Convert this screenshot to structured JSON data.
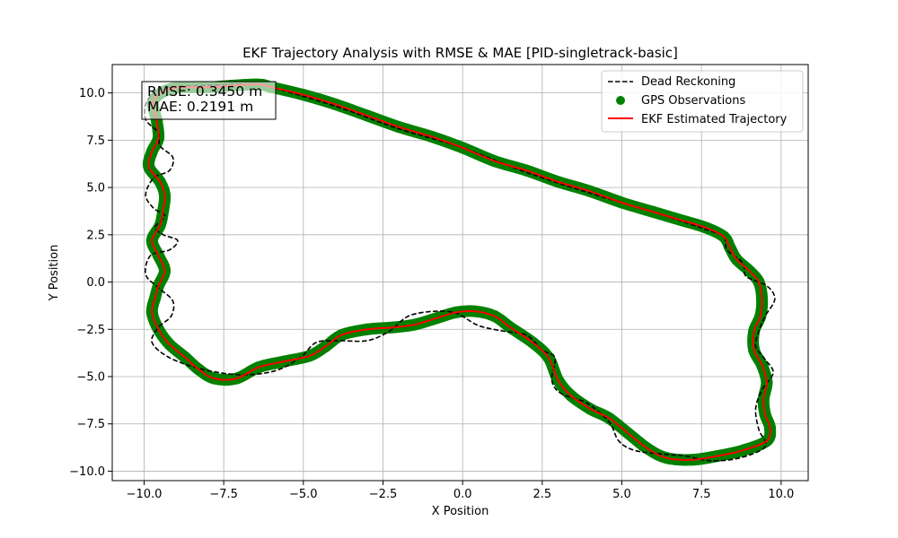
{
  "chart_data": {
    "type": "line",
    "title": "EKF Trajectory Analysis with RMSE & MAE [PID-singletrack-basic]",
    "xlabel": "X Position",
    "ylabel": "Y Position",
    "xlim": [
      -11.0,
      10.85
    ],
    "ylim": [
      -10.5,
      11.5
    ],
    "xticks": [
      -10.0,
      -7.5,
      -5.0,
      -2.5,
      0.0,
      2.5,
      5.0,
      7.5,
      10.0
    ],
    "xtick_labels": [
      "−10.0",
      "−7.5",
      "−5.0",
      "−2.5",
      "0.0",
      "2.5",
      "5.0",
      "7.5",
      "10.0"
    ],
    "yticks": [
      -10.0,
      -7.5,
      -5.0,
      -2.5,
      0.0,
      2.5,
      5.0,
      7.5,
      10.0
    ],
    "ytick_labels": [
      "−10.0",
      "−7.5",
      "−5.0",
      "−2.5",
      "0.0",
      "2.5",
      "5.0",
      "7.5",
      "10.0"
    ],
    "grid": true,
    "legend_position": "top-right",
    "annotation": {
      "lines": [
        "RMSE: 0.3450 m",
        "MAE: 0.2191 m"
      ],
      "position": "top-left"
    },
    "series": [
      {
        "name": "Dead Reckoning",
        "kind": "line",
        "style": "dashed",
        "color": "#000000",
        "points": [
          [
            -6.5,
            10.45
          ],
          [
            -8.0,
            10.4
          ],
          [
            -9.4,
            10.25
          ],
          [
            -9.9,
            9.6
          ],
          [
            -9.95,
            8.6
          ],
          [
            -9.55,
            7.9
          ],
          [
            -9.5,
            7.2
          ],
          [
            -9.1,
            6.6
          ],
          [
            -9.2,
            5.9
          ],
          [
            -9.7,
            5.5
          ],
          [
            -9.95,
            4.6
          ],
          [
            -9.7,
            3.9
          ],
          [
            -9.35,
            3.5
          ],
          [
            -9.65,
            2.9
          ],
          [
            -9.4,
            2.5
          ],
          [
            -8.95,
            2.2
          ],
          [
            -9.2,
            1.7
          ],
          [
            -9.8,
            1.4
          ],
          [
            -9.95,
            0.4
          ],
          [
            -9.55,
            -0.3
          ],
          [
            -9.1,
            -1.0
          ],
          [
            -9.15,
            -1.8
          ],
          [
            -9.55,
            -2.4
          ],
          [
            -9.75,
            -3.2
          ],
          [
            -9.2,
            -4.0
          ],
          [
            -8.2,
            -4.6
          ],
          [
            -7.0,
            -4.9
          ],
          [
            -5.9,
            -4.7
          ],
          [
            -5.1,
            -4.0
          ],
          [
            -4.6,
            -3.2
          ],
          [
            -3.9,
            -3.1
          ],
          [
            -3.0,
            -3.1
          ],
          [
            -2.3,
            -2.6
          ],
          [
            -1.7,
            -1.8
          ],
          [
            -0.9,
            -1.55
          ],
          [
            -0.2,
            -1.65
          ],
          [
            0.5,
            -2.3
          ],
          [
            1.3,
            -2.6
          ],
          [
            2.0,
            -2.8
          ],
          [
            2.5,
            -3.6
          ],
          [
            2.9,
            -4.0
          ],
          [
            2.8,
            -5.2
          ],
          [
            3.1,
            -5.9
          ],
          [
            3.9,
            -6.4
          ],
          [
            4.6,
            -7.4
          ],
          [
            4.9,
            -8.4
          ],
          [
            5.4,
            -8.9
          ],
          [
            6.3,
            -9.1
          ],
          [
            7.0,
            -9.2
          ],
          [
            7.8,
            -9.45
          ],
          [
            8.7,
            -9.3
          ],
          [
            9.5,
            -8.7
          ],
          [
            9.3,
            -7.8
          ],
          [
            9.2,
            -6.7
          ],
          [
            9.4,
            -5.7
          ],
          [
            9.75,
            -4.8
          ],
          [
            9.5,
            -4.1
          ],
          [
            9.2,
            -3.4
          ],
          [
            9.3,
            -2.6
          ],
          [
            9.5,
            -1.8
          ],
          [
            9.8,
            -0.9
          ],
          [
            9.55,
            -0.2
          ],
          [
            8.9,
            0.3
          ],
          [
            8.8,
            1.0
          ],
          [
            8.3,
            1.7
          ],
          [
            8.2,
            2.4
          ],
          [
            7.6,
            2.8
          ],
          [
            6.0,
            3.7
          ],
          [
            4.0,
            4.7
          ],
          [
            2.0,
            5.8
          ],
          [
            0.0,
            7.1
          ],
          [
            -2.0,
            8.1
          ],
          [
            -4.0,
            9.3
          ],
          [
            -6.0,
            10.3
          ]
        ]
      },
      {
        "name": "GPS Observations",
        "kind": "scatter",
        "color": "#008000",
        "points": [
          [
            -6.5,
            10.45
          ],
          [
            -8.0,
            10.3
          ],
          [
            -9.1,
            10.25
          ],
          [
            -9.7,
            9.6
          ],
          [
            -9.6,
            8.5
          ],
          [
            -9.55,
            7.6
          ],
          [
            -9.75,
            6.9
          ],
          [
            -9.85,
            6.1
          ],
          [
            -9.5,
            5.3
          ],
          [
            -9.35,
            4.6
          ],
          [
            -9.4,
            3.8
          ],
          [
            -9.5,
            3.0
          ],
          [
            -9.75,
            2.2
          ],
          [
            -9.55,
            1.4
          ],
          [
            -9.35,
            0.6
          ],
          [
            -9.55,
            -0.2
          ],
          [
            -9.65,
            -0.8
          ],
          [
            -9.75,
            -1.6
          ],
          [
            -9.55,
            -2.5
          ],
          [
            -9.2,
            -3.3
          ],
          [
            -8.7,
            -4.0
          ],
          [
            -8.3,
            -4.6
          ],
          [
            -7.8,
            -5.1
          ],
          [
            -7.1,
            -5.1
          ],
          [
            -6.4,
            -4.5
          ],
          [
            -5.6,
            -4.2
          ],
          [
            -4.8,
            -3.9
          ],
          [
            -4.3,
            -3.4
          ],
          [
            -3.8,
            -2.8
          ],
          [
            -3.0,
            -2.5
          ],
          [
            -2.2,
            -2.4
          ],
          [
            -1.5,
            -2.25
          ],
          [
            -0.8,
            -1.9
          ],
          [
            -0.2,
            -1.6
          ],
          [
            0.4,
            -1.55
          ],
          [
            1.0,
            -1.8
          ],
          [
            1.5,
            -2.4
          ],
          [
            2.2,
            -3.2
          ],
          [
            2.7,
            -4.0
          ],
          [
            3.0,
            -5.2
          ],
          [
            3.4,
            -6.0
          ],
          [
            4.0,
            -6.7
          ],
          [
            4.6,
            -7.2
          ],
          [
            5.2,
            -8.0
          ],
          [
            5.8,
            -8.8
          ],
          [
            6.4,
            -9.3
          ],
          [
            7.2,
            -9.4
          ],
          [
            8.0,
            -9.2
          ],
          [
            8.8,
            -8.9
          ],
          [
            9.55,
            -8.4
          ],
          [
            9.65,
            -7.7
          ],
          [
            9.5,
            -7.0
          ],
          [
            9.45,
            -6.2
          ],
          [
            9.55,
            -5.3
          ],
          [
            9.4,
            -4.4
          ],
          [
            9.15,
            -3.6
          ],
          [
            9.15,
            -2.6
          ],
          [
            9.35,
            -1.8
          ],
          [
            9.4,
            -0.9
          ],
          [
            9.3,
            0.0
          ],
          [
            9.0,
            0.6
          ],
          [
            8.6,
            1.2
          ],
          [
            8.4,
            1.8
          ],
          [
            8.2,
            2.4
          ],
          [
            7.6,
            2.9
          ],
          [
            6.8,
            3.3
          ],
          [
            6.0,
            3.7
          ],
          [
            5.0,
            4.2
          ],
          [
            4.0,
            4.8
          ],
          [
            3.0,
            5.3
          ],
          [
            2.0,
            5.9
          ],
          [
            1.0,
            6.4
          ],
          [
            0.0,
            7.1
          ],
          [
            -1.0,
            7.7
          ],
          [
            -2.0,
            8.2
          ],
          [
            -3.0,
            8.8
          ],
          [
            -4.0,
            9.4
          ],
          [
            -5.0,
            9.9
          ],
          [
            -6.0,
            10.3
          ]
        ]
      },
      {
        "name": "EKF Estimated Trajectory",
        "kind": "line",
        "style": "solid",
        "color": "#ff0000",
        "points": [
          [
            -6.5,
            10.45
          ],
          [
            -8.0,
            10.3
          ],
          [
            -9.1,
            10.25
          ],
          [
            -9.7,
            9.6
          ],
          [
            -9.6,
            8.5
          ],
          [
            -9.55,
            7.6
          ],
          [
            -9.75,
            6.9
          ],
          [
            -9.85,
            6.1
          ],
          [
            -9.5,
            5.3
          ],
          [
            -9.35,
            4.6
          ],
          [
            -9.4,
            3.8
          ],
          [
            -9.5,
            3.0
          ],
          [
            -9.75,
            2.2
          ],
          [
            -9.55,
            1.4
          ],
          [
            -9.35,
            0.6
          ],
          [
            -9.55,
            -0.2
          ],
          [
            -9.65,
            -0.8
          ],
          [
            -9.75,
            -1.6
          ],
          [
            -9.55,
            -2.5
          ],
          [
            -9.2,
            -3.3
          ],
          [
            -8.7,
            -4.0
          ],
          [
            -8.3,
            -4.6
          ],
          [
            -7.8,
            -5.1
          ],
          [
            -7.1,
            -5.1
          ],
          [
            -6.4,
            -4.5
          ],
          [
            -5.6,
            -4.2
          ],
          [
            -4.8,
            -3.9
          ],
          [
            -4.3,
            -3.4
          ],
          [
            -3.8,
            -2.8
          ],
          [
            -3.0,
            -2.5
          ],
          [
            -2.2,
            -2.4
          ],
          [
            -1.5,
            -2.25
          ],
          [
            -0.8,
            -1.9
          ],
          [
            -0.2,
            -1.6
          ],
          [
            0.4,
            -1.55
          ],
          [
            1.0,
            -1.8
          ],
          [
            1.5,
            -2.4
          ],
          [
            2.2,
            -3.2
          ],
          [
            2.7,
            -4.0
          ],
          [
            3.0,
            -5.2
          ],
          [
            3.4,
            -6.0
          ],
          [
            4.0,
            -6.7
          ],
          [
            4.6,
            -7.2
          ],
          [
            5.2,
            -8.0
          ],
          [
            5.8,
            -8.8
          ],
          [
            6.4,
            -9.3
          ],
          [
            7.2,
            -9.4
          ],
          [
            8.0,
            -9.2
          ],
          [
            8.8,
            -8.9
          ],
          [
            9.55,
            -8.4
          ],
          [
            9.65,
            -7.7
          ],
          [
            9.5,
            -7.0
          ],
          [
            9.45,
            -6.2
          ],
          [
            9.55,
            -5.3
          ],
          [
            9.4,
            -4.4
          ],
          [
            9.15,
            -3.6
          ],
          [
            9.15,
            -2.6
          ],
          [
            9.35,
            -1.8
          ],
          [
            9.4,
            -0.9
          ],
          [
            9.3,
            0.0
          ],
          [
            9.0,
            0.6
          ],
          [
            8.6,
            1.2
          ],
          [
            8.4,
            1.8
          ],
          [
            8.2,
            2.4
          ],
          [
            7.6,
            2.9
          ],
          [
            6.8,
            3.3
          ],
          [
            6.0,
            3.7
          ],
          [
            5.0,
            4.2
          ],
          [
            4.0,
            4.8
          ],
          [
            3.0,
            5.3
          ],
          [
            2.0,
            5.9
          ],
          [
            1.0,
            6.4
          ],
          [
            0.0,
            7.1
          ],
          [
            -1.0,
            7.7
          ],
          [
            -2.0,
            8.2
          ],
          [
            -3.0,
            8.8
          ],
          [
            -4.0,
            9.4
          ],
          [
            -5.0,
            9.9
          ],
          [
            -6.0,
            10.3
          ]
        ]
      }
    ]
  }
}
